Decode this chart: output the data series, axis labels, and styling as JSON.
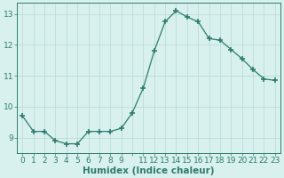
{
  "x": [
    0,
    1,
    2,
    3,
    4,
    5,
    6,
    7,
    8,
    9,
    10,
    11,
    12,
    13,
    14,
    15,
    16,
    17,
    18,
    19,
    20,
    21,
    22,
    23
  ],
  "y": [
    9.7,
    9.2,
    9.2,
    8.9,
    8.8,
    8.8,
    9.2,
    9.2,
    9.2,
    9.3,
    9.8,
    10.6,
    11.8,
    12.75,
    13.1,
    12.9,
    12.75,
    12.2,
    12.15,
    11.85,
    11.55,
    11.2,
    10.9,
    10.85
  ],
  "line_color": "#2e7d6e",
  "marker": "+",
  "marker_size": 5,
  "marker_lw": 1.2,
  "bg_color": "#d8f0ee",
  "grid_color": "#b8d8d4",
  "xlabel": "Humidex (Indice chaleur)",
  "xlim": [
    -0.5,
    23.5
  ],
  "ylim": [
    8.5,
    13.35
  ],
  "yticks": [
    9,
    10,
    11,
    12,
    13
  ],
  "xtick_positions": [
    0,
    1,
    2,
    3,
    4,
    5,
    6,
    7,
    8,
    9,
    10,
    11,
    12,
    13,
    14,
    15,
    16,
    17,
    18,
    19,
    20,
    21,
    22,
    23
  ],
  "xtick_labels": [
    "0",
    "1",
    "2",
    "3",
    "4",
    "5",
    "6",
    "7",
    "8",
    "9",
    "",
    "11",
    "12",
    "13",
    "14",
    "15",
    "16",
    "17",
    "18",
    "19",
    "20",
    "21",
    "22",
    "23"
  ],
  "title_color": "#2e7d6e",
  "label_fontsize": 7.5,
  "tick_fontsize": 6.5
}
